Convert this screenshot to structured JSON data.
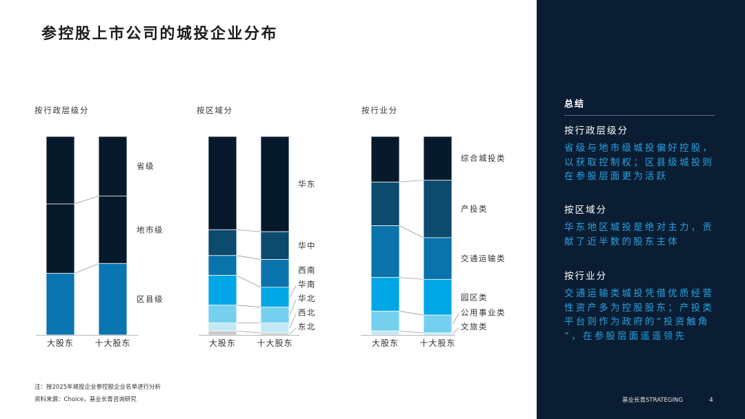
{
  "slide": {
    "title": "参控股上市公司的城投企业分布",
    "brand": "基业长青STRATEGING",
    "page_number": "4"
  },
  "footnotes": {
    "note": "注：按2025年城投企业参控股企业名单进行分析",
    "source": "资料来源：Choice，基业长青咨询研究"
  },
  "colors": {
    "panel_background": "#0a1d32",
    "summary_text": "#2ba2e3",
    "navy": "#071a2c"
  },
  "chart_data": [
    {
      "type": "bar",
      "stacked": true,
      "title": "按行政层级分",
      "categories": [
        "大股东",
        "十大股东"
      ],
      "ylim": [
        0,
        100
      ],
      "grid": false,
      "legend": "right",
      "series": [
        {
          "name": "省级",
          "values": [
            34,
            30
          ],
          "color": "#071a2c"
        },
        {
          "name": "地市级",
          "values": [
            35,
            34
          ],
          "color": "#071a2c"
        },
        {
          "name": "区县级",
          "values": [
            31,
            36
          ],
          "color": "#0a75b0"
        }
      ]
    },
    {
      "type": "bar",
      "stacked": true,
      "title": "按区域分",
      "categories": [
        "大股东",
        "十大股东"
      ],
      "ylim": [
        0,
        100
      ],
      "grid": false,
      "legend": "right",
      "series": [
        {
          "name": "华东",
          "values": [
            47,
            48
          ],
          "color": "#071a2c"
        },
        {
          "name": "华中",
          "values": [
            13,
            14
          ],
          "color": "#0c4a6e"
        },
        {
          "name": "西南",
          "values": [
            10,
            14
          ],
          "color": "#0a73ab"
        },
        {
          "name": "华南",
          "values": [
            15,
            10
          ],
          "color": "#00a7e6"
        },
        {
          "name": "华北",
          "values": [
            9,
            8
          ],
          "color": "#75d0ef"
        },
        {
          "name": "西北",
          "values": [
            4,
            5
          ],
          "color": "#c1e8f5"
        },
        {
          "name": "东北",
          "values": [
            2,
            1
          ],
          "color": "#c9c9c9"
        }
      ]
    },
    {
      "type": "bar",
      "stacked": true,
      "title": "按行业分",
      "categories": [
        "大股东",
        "十大股东"
      ],
      "ylim": [
        0,
        100
      ],
      "grid": false,
      "legend": "right",
      "series": [
        {
          "name": "综合城投类",
          "values": [
            23,
            22
          ],
          "color": "#071a2c"
        },
        {
          "name": "产投类",
          "values": [
            22,
            29
          ],
          "color": "#0c4a6e"
        },
        {
          "name": "交通运输类",
          "values": [
            26,
            21
          ],
          "color": "#0a73ab"
        },
        {
          "name": "园区类",
          "values": [
            17,
            18
          ],
          "color": "#00a7e6"
        },
        {
          "name": "公用事业类",
          "values": [
            10,
            9
          ],
          "color": "#75d0ef"
        },
        {
          "name": "文旅类",
          "values": [
            2,
            1
          ],
          "color": "#c1e8f5"
        }
      ]
    }
  ],
  "summary": {
    "heading": "总结",
    "points": [
      {
        "title": "按行政层级分",
        "lines": [
          "省级与地市级城投偏好控股，",
          "以获取控制权；区县级城投则",
          "在参股层面更为活跃"
        ]
      },
      {
        "title": "按区域分",
        "lines": [
          "华东地区城投是绝对主力，贡",
          "献了近半数的股东主体"
        ]
      },
      {
        "title": "按行业分",
        "lines": [
          "交通运输类城投凭借优质经营",
          "性资产多为控股股东；产投类",
          "平台则作为政府的“投资触角",
          "”，在参股层面遥遥领先"
        ]
      }
    ]
  }
}
